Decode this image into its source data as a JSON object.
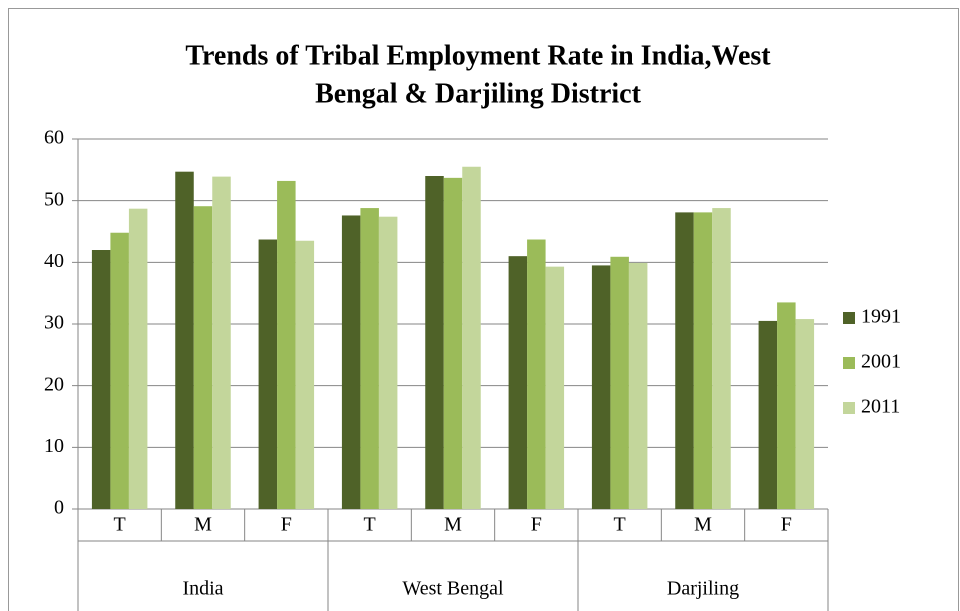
{
  "chart_data": {
    "type": "bar",
    "title": [
      "Trends of Tribal Employment Rate in India,West",
      "Bengal & Darjiling District"
    ],
    "categories": [
      "T",
      "M",
      "F",
      "T",
      "M",
      "F",
      "T",
      "M",
      "F"
    ],
    "groups": [
      "India",
      "West Bengal",
      "Darjiling"
    ],
    "series": [
      {
        "name": "1991",
        "color": "#4f6228",
        "values": [
          42.0,
          54.7,
          43.7,
          47.6,
          54.0,
          41.0,
          39.5,
          48.1,
          30.5
        ]
      },
      {
        "name": "2001",
        "color": "#9bbb59",
        "values": [
          44.8,
          49.1,
          53.2,
          48.8,
          53.7,
          43.7,
          40.9,
          48.1,
          33.5
        ]
      },
      {
        "name": "2011",
        "color": "#c3d69b",
        "values": [
          48.7,
          53.9,
          43.5,
          47.4,
          55.5,
          39.3,
          39.9,
          48.8,
          30.8
        ]
      }
    ],
    "ylim": [
      0,
      60
    ],
    "yticks": [
      0,
      10,
      20,
      30,
      40,
      50,
      60
    ],
    "grid": true,
    "legend": "right"
  }
}
